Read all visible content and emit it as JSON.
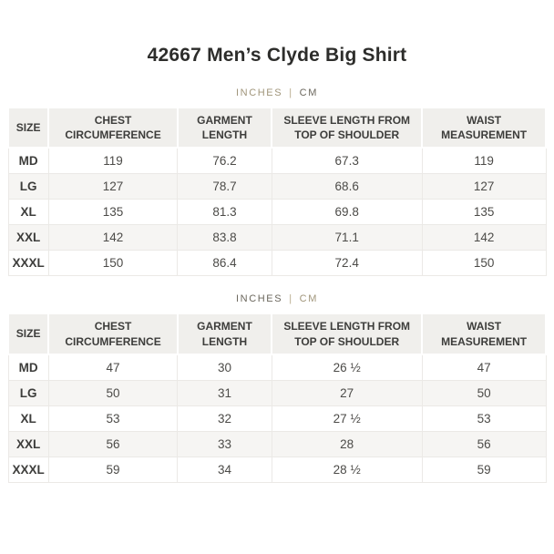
{
  "page": {
    "title": "42667 Men’s Clyde Big Shirt"
  },
  "colors": {
    "accent_tan_inactive": "#a0957a",
    "unit_active": "#6b675d",
    "header_bg": "#f0efec",
    "stripe_row_bg": "#f6f5f3",
    "cell_border": "#ebe9e6",
    "title_text": "#2d2d2b",
    "body_text": "#4c4b48"
  },
  "unit_toggle": {
    "inches_label": "INCHES",
    "separator": "|",
    "cm_label": "CM"
  },
  "tables": [
    {
      "active_unit": "CM",
      "headers": [
        "SIZE",
        "CHEST CIRCUMFERENCE",
        "GARMENT LENGTH",
        "SLEEVE LENGTH FROM TOP OF SHOULDER",
        "WAIST MEASUREMENT"
      ],
      "rows": [
        [
          "MD",
          "119",
          "76.2",
          "67.3",
          "119"
        ],
        [
          "LG",
          "127",
          "78.7",
          "68.6",
          "127"
        ],
        [
          "XL",
          "135",
          "81.3",
          "69.8",
          "135"
        ],
        [
          "XXL",
          "142",
          "83.8",
          "71.1",
          "142"
        ],
        [
          "XXXL",
          "150",
          "86.4",
          "72.4",
          "150"
        ]
      ]
    },
    {
      "active_unit": "INCHES",
      "headers": [
        "SIZE",
        "CHEST CIRCUMFERENCE",
        "GARMENT LENGTH",
        "SLEEVE LENGTH FROM TOP OF SHOULDER",
        "WAIST MEASUREMENT"
      ],
      "rows": [
        [
          "MD",
          "47",
          "30",
          "26 ½",
          "47"
        ],
        [
          "LG",
          "50",
          "31",
          "27",
          "50"
        ],
        [
          "XL",
          "53",
          "32",
          "27 ½",
          "53"
        ],
        [
          "XXL",
          "56",
          "33",
          "28",
          "56"
        ],
        [
          "XXXL",
          "59",
          "34",
          "28 ½",
          "59"
        ]
      ]
    }
  ]
}
